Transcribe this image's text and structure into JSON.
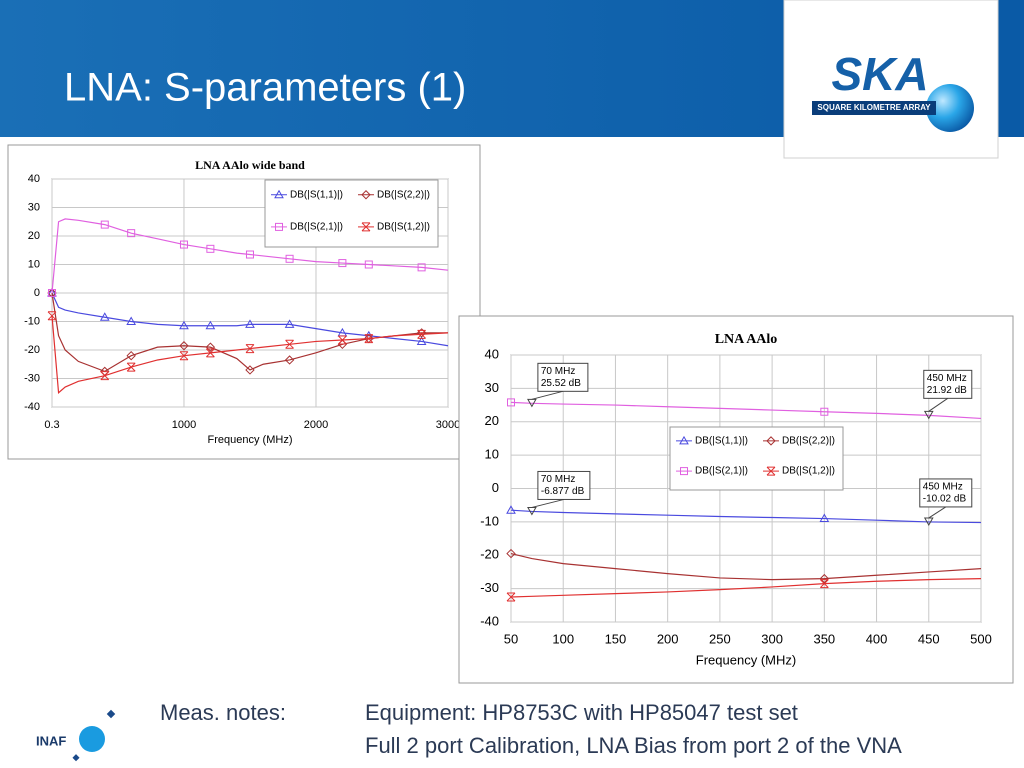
{
  "slide": {
    "title": "LNA: S-parameters (1)",
    "logo_text": "SKA",
    "logo_subtext": "SQUARE KILOMETRE ARRAY",
    "footer_logo": "INAF",
    "notes_label": "Meas. notes:",
    "notes": [
      "Equipment: HP8753C with HP85047 test set",
      "Full 2 port Calibration, LNA Bias from port 2 of the VNA"
    ]
  },
  "chart_data": [
    {
      "type": "line",
      "title": "LNA AAlo wide band",
      "xlabel": "Frequency (MHz)",
      "x": [
        0.3,
        50,
        100,
        200,
        400,
        600,
        800,
        1000,
        1200,
        1400,
        1500,
        1600,
        1800,
        2000,
        2200,
        2400,
        2600,
        2800,
        3000
      ],
      "series": [
        {
          "name": "DB(|S(1,1)|)",
          "color": "#4a4adf",
          "values": [
            0,
            -5,
            -6,
            -7,
            -8.5,
            -10,
            -11,
            -11.5,
            -11.5,
            -11.5,
            -11,
            -11,
            -11,
            -12.5,
            -14,
            -15,
            -16,
            -17,
            -18.5
          ]
        },
        {
          "name": "DB(|S(2,2)|)",
          "color": "#a83232",
          "values": [
            0,
            -15,
            -20,
            -24,
            -27.5,
            -22,
            -19,
            -18.5,
            -19,
            -23,
            -27,
            -25,
            -23.5,
            -21,
            -18,
            -16,
            -15,
            -14,
            -14
          ]
        },
        {
          "name": "DB(|S(2,1)|)",
          "color": "#e060e0",
          "values": [
            0,
            25,
            26,
            25.5,
            24,
            21,
            19,
            17,
            15.5,
            14,
            13.5,
            13,
            12,
            11,
            10.5,
            10,
            9.5,
            9,
            8
          ]
        },
        {
          "name": "DB(|S(1,2)|)",
          "color": "#e03030",
          "values": [
            -8,
            -35,
            -33,
            -31,
            -29,
            -26,
            -23.5,
            -22,
            -21,
            -20,
            -19.5,
            -19,
            -18,
            -17,
            -16.5,
            -16,
            -15,
            -14.5,
            -14
          ]
        }
      ],
      "xlim": [
        0.3,
        3000
      ],
      "ylim": [
        -40,
        40
      ],
      "xticks": [
        0.3,
        1000,
        2000,
        3000
      ],
      "yticks": [
        -40,
        -30,
        -20,
        -10,
        0,
        10,
        20,
        30,
        40
      ],
      "grid": true
    },
    {
      "type": "line",
      "title": "LNA AAlo",
      "xlabel": "Frequency (MHz)",
      "x": [
        50,
        70,
        100,
        150,
        200,
        250,
        300,
        350,
        400,
        450,
        500
      ],
      "series": [
        {
          "name": "DB(|S(1,1)|)",
          "color": "#4a4adf",
          "values": [
            -6.5,
            -6.877,
            -7.2,
            -7.6,
            -8,
            -8.4,
            -8.7,
            -9,
            -9.5,
            -10.02,
            -10.2
          ]
        },
        {
          "name": "DB(|S(2,2)|)",
          "color": "#a83232",
          "values": [
            -19.5,
            -21,
            -22.5,
            -24,
            -25.5,
            -26.8,
            -27.3,
            -27,
            -26,
            -25,
            -24
          ]
        },
        {
          "name": "DB(|S(2,1)|)",
          "color": "#e060e0",
          "values": [
            25.8,
            25.52,
            25.3,
            25,
            24.5,
            24,
            23.5,
            23,
            22.5,
            21.92,
            21
          ]
        },
        {
          "name": "DB(|S(1,2)|)",
          "color": "#e03030",
          "values": [
            -32.5,
            -32.3,
            -32,
            -31.5,
            -31,
            -30.3,
            -29.5,
            -28.5,
            -27.8,
            -27.3,
            -27
          ]
        }
      ],
      "annotations": [
        {
          "x": 70,
          "y": 25.52,
          "lines": [
            "70 MHz",
            "25.52 dB"
          ]
        },
        {
          "x": 450,
          "y": 21.92,
          "lines": [
            "450 MHz",
            "21.92 dB"
          ]
        },
        {
          "x": 70,
          "y": -6.877,
          "lines": [
            "70 MHz",
            "-6.877 dB"
          ]
        },
        {
          "x": 450,
          "y": -10.02,
          "lines": [
            "450 MHz",
            "-10.02 dB"
          ]
        }
      ],
      "xlim": [
        50,
        500
      ],
      "ylim": [
        -40,
        40
      ],
      "xticks": [
        50,
        100,
        150,
        200,
        250,
        300,
        350,
        400,
        450,
        500
      ],
      "yticks": [
        -40,
        -30,
        -20,
        -10,
        0,
        10,
        20,
        30,
        40
      ],
      "grid": true
    }
  ]
}
